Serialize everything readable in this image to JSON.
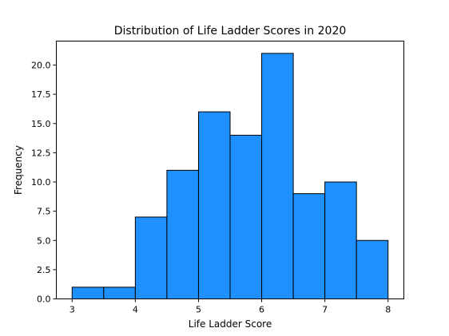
{
  "chart_data": {
    "type": "bar",
    "title": "Distribution of Life Ladder Scores in 2020",
    "xlabel": "Life Ladder Score",
    "ylabel": "Frequency",
    "bin_edges": [
      3.0,
      3.5,
      4.0,
      4.5,
      5.0,
      5.5,
      6.0,
      6.5,
      7.0,
      7.5,
      8.0
    ],
    "values": [
      1,
      1,
      7,
      11,
      16,
      14,
      21,
      9,
      10,
      5
    ],
    "xlim": [
      2.75,
      8.25
    ],
    "ylim": [
      0,
      22.05
    ],
    "xticks": [
      3,
      4,
      5,
      6,
      7,
      8
    ],
    "xtick_labels": [
      "3",
      "4",
      "5",
      "6",
      "7",
      "8"
    ],
    "yticks": [
      0,
      2.5,
      5,
      7.5,
      10,
      12.5,
      15,
      17.5,
      20
    ],
    "ytick_labels": [
      "0.0",
      "2.5",
      "5.0",
      "7.5",
      "10.0",
      "12.5",
      "15.0",
      "17.5",
      "20.0"
    ],
    "bar_color": "#1e90ff",
    "edge_color": "#000000",
    "grid": false
  }
}
